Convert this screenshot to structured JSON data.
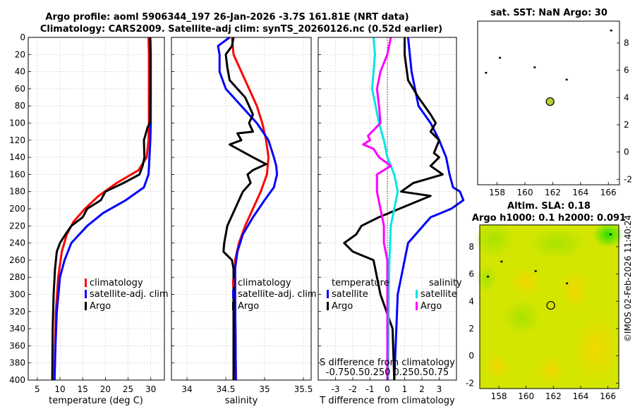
{
  "header": {
    "title_line1": "Argo profile: aoml 5906344_197 26-Jan-2026 -3.7S 161.81E (NRT data)",
    "title_line2": "Climatology: CARS2009. Satellite-adj clim: synTS_20260126.nc (0.52d earlier)"
  },
  "colors": {
    "climatology": "#ff0000",
    "satellite": "#0000ff",
    "argo": "#000000",
    "t_sat": "#0000ff",
    "s_sat": "#00e5e5",
    "s_argo": "#ff00ff"
  },
  "depth_ticks": [
    "0",
    "20",
    "40",
    "60",
    "80",
    "100",
    "120",
    "140",
    "160",
    "180",
    "200",
    "220",
    "240",
    "260",
    "280",
    "300",
    "320",
    "340",
    "360",
    "380",
    "400"
  ],
  "chart_data": [
    {
      "type": "line",
      "name": "temperature",
      "xlabel": "temperature (deg C)",
      "ylabel": "depth",
      "xlim": [
        3,
        33
      ],
      "ylim": [
        400,
        0
      ],
      "xticks": [
        "5",
        "10",
        "15",
        "20",
        "25",
        "30"
      ],
      "legend": [
        "climatology",
        "satellite-adj. clim",
        "Argo"
      ],
      "series": [
        {
          "name": "climatology",
          "depth": [
            0,
            20,
            60,
            100,
            120,
            140,
            155,
            170,
            185,
            200,
            215,
            230,
            250,
            280,
            320,
            360,
            400
          ],
          "values": [
            29.5,
            29.6,
            29.6,
            29.6,
            29.5,
            29.1,
            27.3,
            22.5,
            18.5,
            15.5,
            13,
            11.5,
            10.4,
            9.6,
            9.1,
            8.9,
            8.8
          ]
        },
        {
          "name": "satellite-adj. clim",
          "depth": [
            0,
            20,
            60,
            100,
            120,
            140,
            160,
            175,
            190,
            205,
            220,
            240,
            260,
            280,
            320,
            360,
            400
          ],
          "values": [
            29.9,
            30,
            30,
            30,
            29.9,
            29.7,
            29.5,
            28.5,
            24.5,
            19.5,
            16,
            12.5,
            11,
            10,
            9.3,
            9,
            8.8
          ]
        },
        {
          "name": "Argo",
          "depth": [
            0,
            20,
            60,
            100,
            105,
            120,
            140,
            150,
            160,
            170,
            180,
            190,
            200,
            210,
            220,
            230,
            240,
            250,
            270,
            300,
            340,
            400
          ],
          "values": [
            29.8,
            29.9,
            29.9,
            29.8,
            29.3,
            28.5,
            28.6,
            28.2,
            27.5,
            24,
            20,
            19,
            16,
            15,
            12.5,
            11.2,
            10,
            9.3,
            8.9,
            8.6,
            8.4,
            8.3
          ]
        }
      ]
    },
    {
      "type": "line",
      "name": "salinity",
      "xlabel": "salinity",
      "ylabel": "depth",
      "xlim": [
        33.8,
        35.6
      ],
      "ylim": [
        400,
        0
      ],
      "xticks": [
        "34",
        "34.5",
        "35",
        "35.5"
      ],
      "legend": [
        "climatology",
        "satellite-adj. clim",
        "Argo"
      ],
      "series": [
        {
          "name": "climatology",
          "depth": [
            0,
            20,
            40,
            60,
            80,
            100,
            120,
            140,
            160,
            180,
            200,
            220,
            240,
            260,
            300,
            400
          ],
          "values": [
            34.58,
            34.6,
            34.7,
            34.8,
            34.9,
            34.97,
            35.02,
            35.05,
            35.03,
            34.95,
            34.85,
            34.75,
            34.67,
            34.62,
            34.62,
            34.63
          ]
        },
        {
          "name": "satellite-adj. clim",
          "depth": [
            0,
            10,
            20,
            40,
            60,
            80,
            100,
            120,
            140,
            150,
            160,
            175,
            190,
            210,
            230,
            250,
            270,
            300,
            400
          ],
          "values": [
            34.55,
            34.4,
            34.42,
            34.42,
            34.5,
            34.7,
            34.9,
            35.05,
            35.12,
            35.15,
            35.16,
            35.12,
            35.0,
            34.85,
            34.72,
            34.65,
            34.62,
            34.62,
            34.63
          ]
        },
        {
          "name": "Argo",
          "depth": [
            0,
            10,
            20,
            35,
            50,
            70,
            90,
            100,
            110,
            112,
            120,
            125,
            130,
            140,
            148,
            155,
            160,
            170,
            180,
            200,
            220,
            240,
            250,
            260,
            270,
            300,
            400
          ],
          "values": [
            34.6,
            34.58,
            34.5,
            34.52,
            34.55,
            34.75,
            34.85,
            34.8,
            34.85,
            34.65,
            34.7,
            34.55,
            34.65,
            34.85,
            35.02,
            34.85,
            34.78,
            34.82,
            34.72,
            34.62,
            34.52,
            34.48,
            34.47,
            34.58,
            34.6,
            34.6,
            34.6
          ]
        }
      ]
    },
    {
      "type": "line",
      "name": "difference from climatology",
      "xlabel": "T difference from climatology",
      "xlabel_top": "S difference from climatology",
      "ylabel": "depth",
      "xlim": [
        -4,
        4
      ],
      "ylim": [
        400,
        0
      ],
      "xticks": [
        "-3",
        "-2",
        "-1",
        "0",
        "1",
        "2",
        "3"
      ],
      "xticks_top": [
        "-0.75",
        "-0.5",
        "-0.25",
        "0",
        "0.25",
        "0.5",
        "0.75"
      ],
      "xticks_top_label": "-0.750.50.250 0.250.50.75",
      "legend_temperature_title": "temperature",
      "legend_salinity_title": "salinity",
      "legend_temperature": [
        "satellite",
        "Argo"
      ],
      "legend_salinity": [
        "satellite",
        "Argo"
      ],
      "series": [
        {
          "name": "T satellite",
          "depth": [
            0,
            40,
            80,
            100,
            120,
            140,
            160,
            175,
            180,
            190,
            200,
            210,
            240,
            300,
            400
          ],
          "values": [
            1.2,
            1.4,
            1.8,
            2.5,
            3.0,
            3.4,
            3.6,
            3.8,
            4.2,
            4.4,
            3.7,
            2.5,
            1.2,
            0.6,
            0.4
          ]
        },
        {
          "name": "T Argo",
          "depth": [
            0,
            20,
            50,
            70,
            90,
            100,
            110,
            120,
            135,
            140,
            150,
            160,
            170,
            180,
            185,
            200,
            210,
            220,
            230,
            240,
            250,
            260,
            300,
            340,
            400
          ],
          "values": [
            1.0,
            1.0,
            1.2,
            1.8,
            2.5,
            2.8,
            2.5,
            3.0,
            2.7,
            3.0,
            2.5,
            3.2,
            1.5,
            0.8,
            2.5,
            0.7,
            -0.5,
            -1.5,
            -1.8,
            -2.5,
            -2.0,
            -0.8,
            -0.4,
            0.3,
            0.4
          ]
        },
        {
          "name": "S satellite",
          "depth": [
            0,
            20,
            60,
            100,
            120,
            140,
            160,
            180,
            200,
            220,
            260,
            300,
            400
          ],
          "values": [
            -0.2,
            -0.18,
            -0.22,
            -0.12,
            -0.05,
            0.0,
            0.1,
            0.15,
            0.1,
            0.05,
            0.03,
            0.02,
            0.01
          ]
        },
        {
          "name": "S Argo",
          "depth": [
            0,
            20,
            40,
            60,
            80,
            100,
            115,
            120,
            125,
            130,
            140,
            150,
            160,
            180,
            200,
            220,
            240,
            260,
            300,
            400
          ],
          "values": [
            0.05,
            0.0,
            -0.1,
            -0.15,
            -0.12,
            -0.1,
            -0.28,
            -0.25,
            -0.35,
            -0.2,
            -0.12,
            0.05,
            -0.15,
            -0.15,
            -0.1,
            -0.05,
            -0.05,
            0.0,
            0.0,
            0.0
          ]
        }
      ]
    },
    {
      "type": "scatter",
      "name": "sat SST map",
      "title": "sat. SST: NaN Argo: 30",
      "xlim": [
        156.6,
        166.8
      ],
      "ylim": [
        -2.4,
        9.6
      ],
      "xticks": [
        "158",
        "160",
        "162",
        "164",
        "166"
      ],
      "yticks": [
        "-2",
        "0",
        "2",
        "4",
        "6",
        "8"
      ],
      "argo_position": {
        "lon": 161.81,
        "lat": 3.7
      },
      "islands": [
        {
          "lon": 158.2,
          "lat": 6.9
        },
        {
          "lon": 157.2,
          "lat": 5.8
        },
        {
          "lon": 160.7,
          "lat": 6.2
        },
        {
          "lon": 163.0,
          "lat": 5.3
        },
        {
          "lon": 166.2,
          "lat": 8.9
        }
      ]
    },
    {
      "type": "heatmap",
      "name": "altimetry SLA map",
      "title_line1": "Altim. SLA: 0.18",
      "title_line2": "Argo h1000: 0.1 h2000: 0.091",
      "xlim": [
        156.6,
        166.8
      ],
      "ylim": [
        -2.4,
        9.6
      ],
      "xticks": [
        "158",
        "160",
        "162",
        "164",
        "166"
      ],
      "yticks": [
        "-2",
        "0",
        "2",
        "4",
        "6",
        "8"
      ],
      "argo_position": {
        "lon": 161.81,
        "lat": 3.7
      },
      "islands": [
        {
          "lon": 158.2,
          "lat": 6.9
        },
        {
          "lon": 157.2,
          "lat": 5.8
        },
        {
          "lon": 160.7,
          "lat": 6.2
        },
        {
          "lon": 163.0,
          "lat": 5.3
        },
        {
          "lon": 166.2,
          "lat": 8.9
        }
      ],
      "watermark": "©IMOS 02-Feb-2026 11:40:24"
    }
  ]
}
